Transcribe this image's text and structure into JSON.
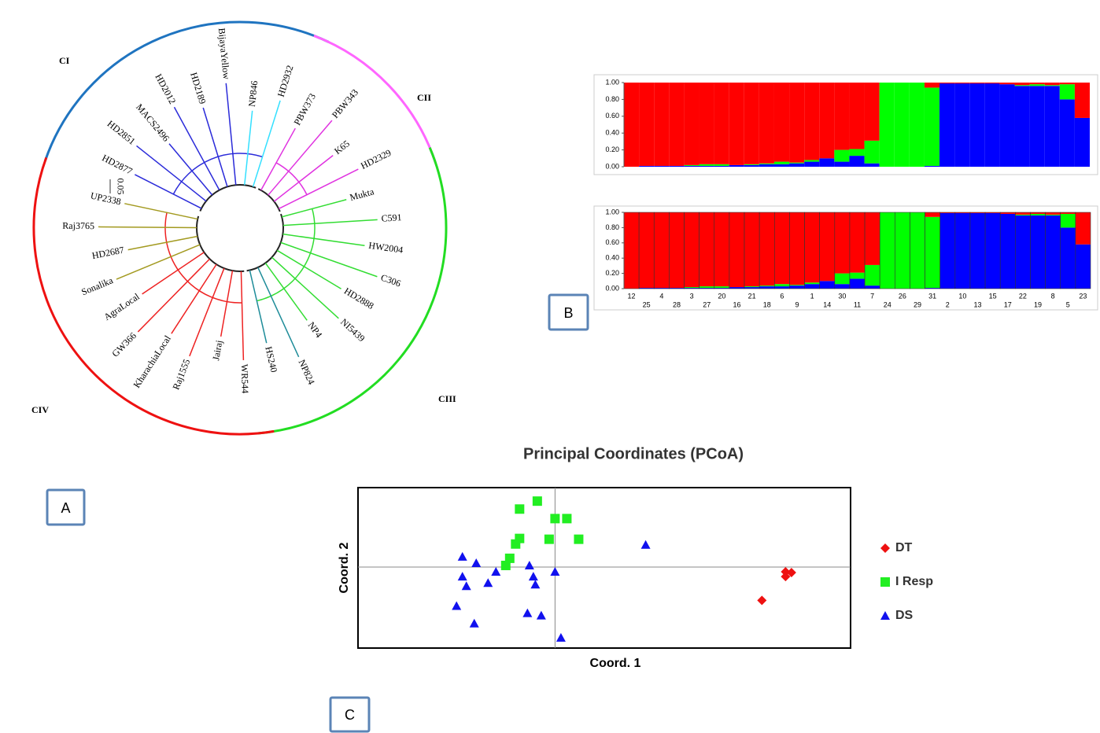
{
  "dendrogram": {
    "scale_label": "0.05",
    "clades": [
      {
        "label": "CI",
        "color": "#1f74c0",
        "taxa": [
          {
            "label": "HD2877",
            "color": "#2b2bd9"
          },
          {
            "label": "HD2851",
            "color": "#2b2bd9"
          },
          {
            "label": "MACS2496",
            "color": "#2b2bd9"
          },
          {
            "label": "HD2012",
            "color": "#2b2bd9"
          },
          {
            "label": "HD2189",
            "color": "#2b2bd9"
          },
          {
            "label": "BijayaYellow",
            "color": "#2b2bd9"
          },
          {
            "label": "NP846",
            "color": "#33e0ff"
          },
          {
            "label": "HD2932",
            "color": "#33e0ff"
          }
        ]
      },
      {
        "label": "CII",
        "color": "#ff66ff",
        "taxa": [
          {
            "label": "PBW373",
            "color": "#e033e0"
          },
          {
            "label": "PBW343",
            "color": "#e033e0"
          },
          {
            "label": "K65",
            "color": "#e033e0"
          },
          {
            "label": "HD2329",
            "color": "#e033e0"
          }
        ]
      },
      {
        "label": "CIII",
        "color": "#22dd22",
        "taxa": [
          {
            "label": "Mukta",
            "color": "#33dd33"
          },
          {
            "label": "C591",
            "color": "#33dd33"
          },
          {
            "label": "HW2004",
            "color": "#33dd33"
          },
          {
            "label": "C306",
            "color": "#33dd33"
          },
          {
            "label": "HD2888",
            "color": "#33dd33"
          },
          {
            "label": "NI5439",
            "color": "#33dd33"
          },
          {
            "label": "NP4",
            "color": "#33dd33"
          },
          {
            "label": "NP824",
            "color": "#1e8c99"
          },
          {
            "label": "HS240",
            "color": "#1e8c99"
          }
        ]
      },
      {
        "label": "CIV",
        "color": "#ee1111",
        "taxa": [
          {
            "label": "WR544",
            "color": "#ee2222"
          },
          {
            "label": "Jairaj",
            "color": "#ee2222"
          },
          {
            "label": "Raj1555",
            "color": "#ee2222"
          },
          {
            "label": "KharachiaLocal",
            "color": "#ee2222"
          },
          {
            "label": "GW366",
            "color": "#ee2222"
          },
          {
            "label": "AgraLocal",
            "color": "#ee2222"
          },
          {
            "label": "Sonalika",
            "color": "#a39a20"
          },
          {
            "label": "HD2687",
            "color": "#a39a20"
          },
          {
            "label": "Raj3765",
            "color": "#a39a20"
          },
          {
            "label": "UP2338",
            "color": "#a39a20"
          }
        ]
      }
    ]
  },
  "panel_labels": {
    "a": "A",
    "b": "B",
    "c": "C"
  },
  "chart_data": [
    {
      "type": "stacked-bar",
      "categories": [
        "12",
        "25",
        "4",
        "28",
        "3",
        "27",
        "20",
        "16",
        "21",
        "18",
        "6",
        "9",
        "1",
        "14",
        "30",
        "11",
        "7",
        "24",
        "26",
        "29",
        "31",
        "2",
        "10",
        "13",
        "15",
        "17",
        "22",
        "19",
        "8",
        "5",
        "23"
      ],
      "series": [
        {
          "color": "#0000ff",
          "values": [
            0,
            0.01,
            0.01,
            0.01,
            0.01,
            0.01,
            0.01,
            0.02,
            0.02,
            0.03,
            0.03,
            0.04,
            0.06,
            0.1,
            0.06,
            0.13,
            0.04,
            0,
            0,
            0,
            0.01,
            0.99,
            0.99,
            0.99,
            0.99,
            0.98,
            0.96,
            0.96,
            0.96,
            0.8,
            0.58
          ]
        },
        {
          "color": "#00ff00",
          "values": [
            0,
            0,
            0,
            0,
            0.01,
            0.02,
            0.02,
            0,
            0.01,
            0.01,
            0.03,
            0.01,
            0.02,
            0,
            0.14,
            0.08,
            0.27,
            1,
            1,
            1,
            0.93,
            0,
            0,
            0,
            0,
            0,
            0.01,
            0.02,
            0.01,
            0.18,
            0
          ]
        },
        {
          "color": "#ff0000",
          "values": [
            1,
            0.99,
            0.99,
            0.99,
            0.98,
            0.97,
            0.97,
            0.98,
            0.97,
            0.96,
            0.94,
            0.95,
            0.92,
            0.9,
            0.8,
            0.79,
            0.69,
            0,
            0,
            0,
            0.06,
            0.01,
            0.01,
            0.01,
            0.01,
            0.02,
            0.03,
            0.02,
            0.03,
            0.02,
            0.42
          ]
        }
      ],
      "ylim": [
        0,
        1
      ],
      "yticks": [
        {
          "value": 0,
          "label": "0.00"
        },
        {
          "value": 0.2,
          "label": "0.20"
        },
        {
          "value": 0.4,
          "label": "0.40"
        },
        {
          "value": 0.6,
          "label": "0.60"
        },
        {
          "value": 0.8,
          "label": "0.80"
        },
        {
          "value": 1,
          "label": "1.00"
        }
      ]
    },
    {
      "type": "scatter",
      "title": "Principal Coordinates (PCoA)",
      "x_label": "Coord. 1",
      "y_label": "Coord. 2",
      "xlim": [
        -1,
        1.5
      ],
      "ylim": [
        -1.02,
        1
      ],
      "zero_lines": true,
      "legend": "right",
      "series": [
        {
          "name": "DT",
          "color": "#ee1111",
          "marker": "diamond",
          "x": [
            1.17,
            1.2,
            1.17,
            1.05
          ],
          "y": [
            -0.06,
            -0.07,
            -0.12,
            -0.42
          ]
        },
        {
          "name": "I Resp",
          "color": "#22ee22",
          "marker": "square",
          "x": [
            -0.18,
            -0.09,
            0,
            0.06,
            -0.18,
            -0.03,
            0.12,
            -0.2,
            -0.23,
            -0.25
          ],
          "y": [
            0.73,
            0.83,
            0.61,
            0.61,
            0.36,
            0.35,
            0.35,
            0.29,
            0.11,
            0.02
          ]
        },
        {
          "name": "DS",
          "color": "#1111ee",
          "marker": "triangle",
          "x": [
            -0.47,
            -0.4,
            -0.47,
            -0.45,
            -0.34,
            -0.3,
            -0.13,
            -0.11,
            -0.1,
            0,
            0.46,
            -0.5,
            -0.41,
            -0.14,
            -0.07,
            0.03
          ],
          "y": [
            0.13,
            0.05,
            -0.12,
            -0.24,
            -0.2,
            -0.06,
            0.02,
            -0.12,
            -0.22,
            -0.06,
            0.28,
            -0.49,
            -0.71,
            -0.58,
            -0.61,
            -0.89
          ]
        }
      ]
    }
  ]
}
